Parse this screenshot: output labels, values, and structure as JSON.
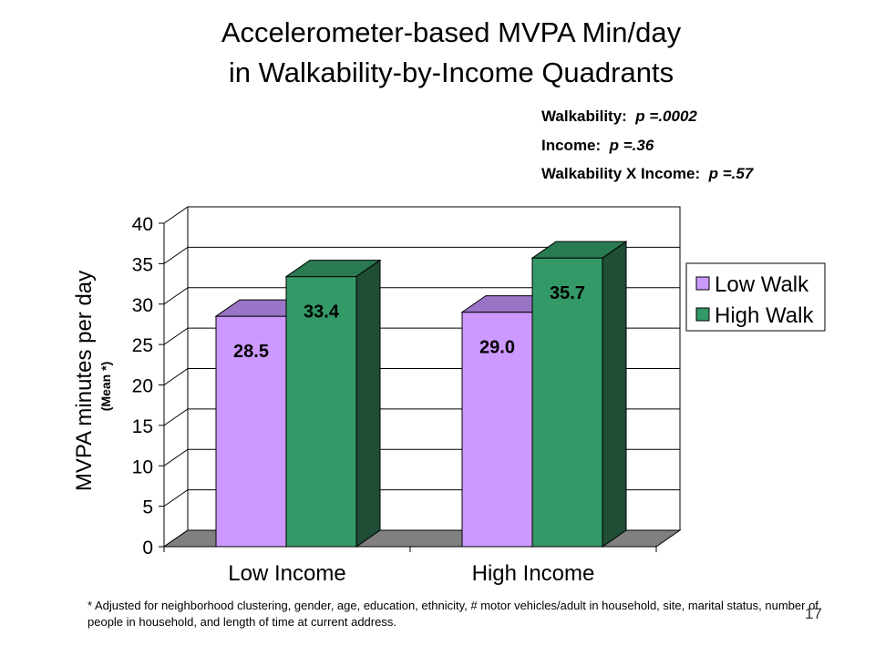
{
  "title_line1": "Accelerometer-based MVPA Min/day",
  "title_line2": "in Walkability-by-Income Quadrants",
  "stats": [
    {
      "label": "Walkability:",
      "pval": "p =.0002"
    },
    {
      "label": "Income:",
      "pval": "p =.36"
    },
    {
      "label": "Walkability X Income:",
      "pval": "p =.57"
    }
  ],
  "footnote": "* Adjusted for neighborhood clustering, gender, age, education, ethnicity, # motor vehicles/adult in household, site, marital status, number of people in household, and length of time at current address.",
  "page_number": "17",
  "chart_data": {
    "type": "bar",
    "ylabel": "MVPA minutes per day",
    "ylabel_sub": "(Mean *)",
    "ylim": [
      0,
      40
    ],
    "yticks": [
      0,
      5,
      10,
      15,
      20,
      25,
      30,
      35,
      40
    ],
    "categories": [
      "Low Income",
      "High Income"
    ],
    "series": [
      {
        "name": "Low Walk",
        "values": [
          28.5,
          29.0
        ],
        "labels": [
          "28.5",
          "29.0"
        ],
        "color": "#cc99ff",
        "top": "#9a74c7",
        "side": "#7a5aa5"
      },
      {
        "name": "High Walk",
        "values": [
          33.4,
          35.7
        ],
        "labels": [
          "33.4",
          "35.7"
        ],
        "color": "#339966",
        "top": "#2a7a52",
        "side": "#1f4d36"
      }
    ],
    "legend_position": "right",
    "grid": true
  }
}
